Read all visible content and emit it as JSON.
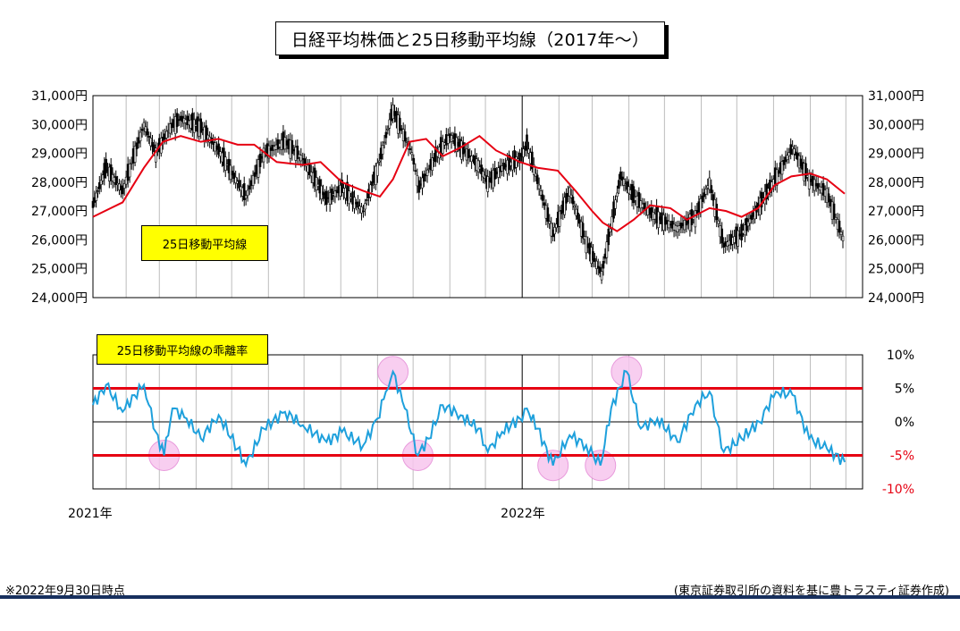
{
  "title": "日経平均株価と25日移動平均線（2017年～）",
  "footnote": "※2022年9月30日時点",
  "source": "(東京証券取引所の資料を基に豊トラスティ証券作成)",
  "colors": {
    "ma_line": "#e60012",
    "candle": "#000000",
    "deviation_line": "#1ea0dc",
    "band": "#e60012",
    "highlight": "#f7c6ee",
    "label_bg": "#ffff00",
    "bottom_bar": "#17305e"
  },
  "chart_data": [
    {
      "type": "line",
      "label_box": "25日移動平均線",
      "y_ticks": [
        "24,000円",
        "25,000円",
        "26,000円",
        "27,000円",
        "28,000円",
        "29,000円",
        "30,000円",
        "31,000円"
      ],
      "ylim": [
        24000,
        31000
      ],
      "x_ticks": [
        "2021年",
        "2022年"
      ],
      "x_range": [
        "2021-01-04",
        "2022-09-30"
      ],
      "grid": "vertical-monthly",
      "series": [
        {
          "name": "日経平均株価",
          "style": "candlestick",
          "x": [
            "2021-01-04",
            "2021-01-15",
            "2021-01-29",
            "2021-02-16",
            "2021-02-26",
            "2021-03-10",
            "2021-03-19",
            "2021-04-05",
            "2021-04-20",
            "2021-05-13",
            "2021-05-28",
            "2021-06-15",
            "2021-06-30",
            "2021-07-20",
            "2021-08-02",
            "2021-08-20",
            "2021-09-01",
            "2021-09-14",
            "2021-09-30",
            "2021-10-06",
            "2021-10-20",
            "2021-11-01",
            "2021-11-25",
            "2021-12-03",
            "2021-12-15",
            "2021-12-30",
            "2022-01-05",
            "2022-01-27",
            "2022-02-10",
            "2022-02-24",
            "2022-03-09",
            "2022-03-25",
            "2022-04-05",
            "2022-04-20",
            "2022-05-12",
            "2022-05-27",
            "2022-06-08",
            "2022-06-20",
            "2022-07-05",
            "2022-07-29",
            "2022-08-17",
            "2022-08-31",
            "2022-09-15",
            "2022-09-30"
          ],
          "values": [
            27200,
            28500,
            27700,
            30000,
            29000,
            29900,
            30200,
            29900,
            29100,
            27500,
            29000,
            29400,
            28800,
            27400,
            27800,
            27000,
            28500,
            30500,
            29000,
            27800,
            28900,
            29600,
            28600,
            28000,
            28500,
            28800,
            29300,
            26200,
            27700,
            25900,
            24800,
            28200,
            27500,
            26900,
            26400,
            26800,
            28000,
            25800,
            26200,
            27800,
            29200,
            28100,
            27600,
            25900
          ]
        },
        {
          "name": "25日移動平均線",
          "x": [
            "2021-01-04",
            "2021-01-29",
            "2021-02-16",
            "2021-03-04",
            "2021-03-19",
            "2021-04-05",
            "2021-04-20",
            "2021-05-06",
            "2021-05-20",
            "2021-06-08",
            "2021-06-30",
            "2021-07-15",
            "2021-08-02",
            "2021-08-20",
            "2021-09-03",
            "2021-09-14",
            "2021-09-28",
            "2021-10-12",
            "2021-10-26",
            "2021-11-10",
            "2021-11-26",
            "2021-12-10",
            "2021-12-30",
            "2022-01-14",
            "2022-01-31",
            "2022-02-15",
            "2022-03-01",
            "2022-03-10",
            "2022-03-22",
            "2022-04-05",
            "2022-04-19",
            "2022-05-06",
            "2022-05-20",
            "2022-06-08",
            "2022-06-22",
            "2022-07-05",
            "2022-07-19",
            "2022-08-02",
            "2022-08-16",
            "2022-09-01",
            "2022-09-15",
            "2022-09-30"
          ],
          "values": [
            26800,
            27300,
            28500,
            29400,
            29600,
            29400,
            29500,
            29300,
            29300,
            28700,
            28600,
            28700,
            28000,
            27700,
            27500,
            28100,
            29400,
            29500,
            28900,
            29200,
            29600,
            29100,
            28700,
            28500,
            28400,
            27700,
            27000,
            26600,
            26300,
            26700,
            27200,
            27100,
            26700,
            27100,
            27000,
            26800,
            27100,
            27900,
            28200,
            28300,
            28100,
            27600
          ]
        }
      ]
    },
    {
      "type": "line",
      "label_box": "25日移動平均線の乖離率",
      "y_ticks": [
        "10%",
        "5%",
        "0%",
        "-5%",
        "-10%"
      ],
      "ylim": [
        -10,
        10
      ],
      "x_ticks": [
        "2021年",
        "2022年"
      ],
      "reference_lines": [
        5,
        -5
      ],
      "highlighted_points": [
        "2021-03-05",
        "2021-09-14",
        "2021-10-05",
        "2022-01-27",
        "2022-03-08",
        "2022-03-30"
      ],
      "series": [
        {
          "name": "25日移動平均線の乖離率",
          "x": [
            "2021-01-04",
            "2021-01-15",
            "2021-01-29",
            "2021-02-08",
            "2021-02-16",
            "2021-02-26",
            "2021-03-05",
            "2021-03-12",
            "2021-03-24",
            "2021-04-05",
            "2021-04-20",
            "2021-05-06",
            "2021-05-13",
            "2021-05-28",
            "2021-06-15",
            "2021-06-30",
            "2021-07-20",
            "2021-08-02",
            "2021-08-20",
            "2021-09-01",
            "2021-09-08",
            "2021-09-14",
            "2021-09-24",
            "2021-10-05",
            "2021-10-14",
            "2021-10-26",
            "2021-11-10",
            "2021-11-25",
            "2021-12-03",
            "2021-12-15",
            "2021-12-30",
            "2022-01-05",
            "2022-01-14",
            "2022-01-27",
            "2022-02-10",
            "2022-02-24",
            "2022-03-08",
            "2022-03-17",
            "2022-03-30",
            "2022-04-11",
            "2022-04-25",
            "2022-05-12",
            "2022-05-27",
            "2022-06-08",
            "2022-06-20",
            "2022-07-05",
            "2022-07-20",
            "2022-08-03",
            "2022-08-17",
            "2022-08-31",
            "2022-09-15",
            "2022-09-30"
          ],
          "values": [
            2.5,
            5.5,
            1.5,
            4.0,
            5.5,
            -1.5,
            -5.0,
            2.0,
            0.5,
            -2.5,
            1.0,
            -4.0,
            -6.5,
            -1.0,
            1.5,
            -0.5,
            -3.0,
            -1.5,
            -3.5,
            0.5,
            4.5,
            7.5,
            2.0,
            -5.0,
            -2.5,
            2.5,
            1.0,
            -1.0,
            -4.5,
            -1.5,
            0.5,
            2.0,
            -1.0,
            -6.5,
            -2.0,
            -3.5,
            -6.5,
            2.0,
            7.5,
            -1.0,
            0.5,
            -3.0,
            2.5,
            4.5,
            -4.5,
            -2.5,
            0.0,
            4.5,
            4.0,
            -2.5,
            -4.0,
            -6.0
          ]
        }
      ]
    }
  ]
}
